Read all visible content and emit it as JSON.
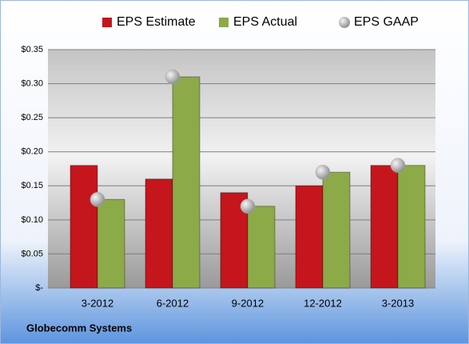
{
  "chart_data": {
    "type": "bar",
    "categories": [
      "3-2012",
      "6-2012",
      "9-2012",
      "12-2012",
      "3-2013"
    ],
    "series": [
      {
        "name": "EPS Estimate",
        "color": "#c4161c",
        "values": [
          0.18,
          0.16,
          0.14,
          0.15,
          0.18
        ]
      },
      {
        "name": "EPS Actual",
        "color": "#8caa48",
        "values": [
          0.13,
          0.31,
          0.12,
          0.17,
          0.18
        ]
      },
      {
        "name": "EPS GAAP",
        "type": "scatter",
        "color": "#a9a9a9",
        "values": [
          0.13,
          0.31,
          0.12,
          0.17,
          0.18
        ]
      }
    ],
    "ylim": [
      0,
      0.35
    ],
    "yticks": [
      {
        "value": 0,
        "label": "$-"
      },
      {
        "value": 0.05,
        "label": "$0.05"
      },
      {
        "value": 0.1,
        "label": "$0.10"
      },
      {
        "value": 0.15,
        "label": "$0.15"
      },
      {
        "value": 0.2,
        "label": "$0.20"
      },
      {
        "value": 0.25,
        "label": "$0.25"
      },
      {
        "value": 0.3,
        "label": "$0.30"
      },
      {
        "value": 0.35,
        "label": "$0.35"
      }
    ],
    "grid": true,
    "legend": "top",
    "caption": "Globecomm Systems"
  }
}
